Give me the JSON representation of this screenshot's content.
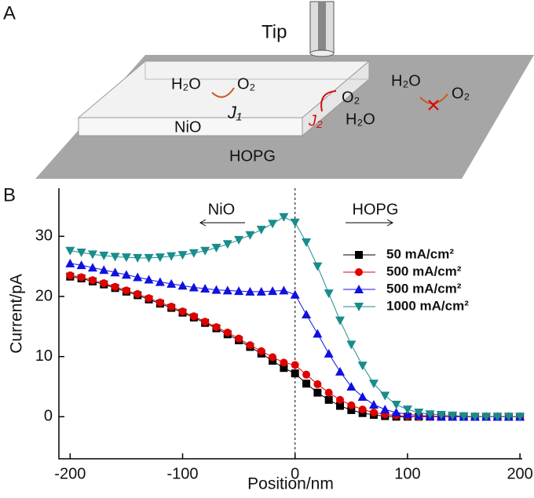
{
  "panel_a": {
    "label": "A",
    "tip": "Tip",
    "left_reactant": "H₂O",
    "left_product": "O₂",
    "j1": "J₁",
    "nio": "NiO",
    "j2": "J₂",
    "edge_product": "O₂",
    "edge_reactant": "H₂O",
    "right_reactant": "H₂O",
    "right_product": "O₂",
    "hopg": "HOPG"
  },
  "chart_data": {
    "type": "line",
    "panel_label": "B",
    "x_label": "Position/nm",
    "y_label": "Current/pA",
    "annotations": [
      "NiO",
      "HOPG"
    ],
    "vline": 0,
    "xlim": [
      -210,
      202
    ],
    "ylim": [
      -7,
      38
    ],
    "xticks": [
      -200,
      -100,
      0,
      100,
      200
    ],
    "yticks": [
      0,
      10,
      20,
      30
    ],
    "x": [
      -200,
      -190,
      -180,
      -170,
      -160,
      -150,
      -140,
      -130,
      -120,
      -110,
      -100,
      -90,
      -80,
      -70,
      -60,
      -50,
      -40,
      -30,
      -20,
      -10,
      0,
      10,
      20,
      30,
      40,
      50,
      60,
      70,
      80,
      90,
      100,
      110,
      120,
      130,
      140,
      150,
      160,
      170,
      180,
      190,
      200
    ],
    "series": [
      {
        "name": "50 mA/cm²",
        "color": "#000000",
        "marker": "square",
        "values": [
          23.3,
          23,
          22.5,
          22,
          21.4,
          20.8,
          20.2,
          19.5,
          18.8,
          18.1,
          17.3,
          16.5,
          15.6,
          14.7,
          13.7,
          12.7,
          11.6,
          10.5,
          9.3,
          8.1,
          7.2,
          5.5,
          4,
          2.8,
          1.8,
          1.1,
          0.6,
          0.3,
          0.1,
          0,
          0,
          0,
          0,
          0,
          0,
          0,
          0,
          0,
          0,
          0,
          0
        ]
      },
      {
        "name": "500 mA/cm²",
        "color": "#e00000",
        "marker": "circle",
        "values": [
          23.5,
          23.2,
          22.7,
          22.2,
          21.6,
          21,
          20.4,
          19.7,
          19,
          18.3,
          17.5,
          16.7,
          15.8,
          14.9,
          14,
          13,
          11.9,
          10.9,
          9.9,
          9,
          8.6,
          7,
          5.4,
          4,
          2.8,
          1.9,
          1.2,
          0.7,
          0.4,
          0.2,
          0.1,
          0,
          0,
          0,
          0,
          0,
          0,
          0,
          0,
          0,
          0
        ]
      },
      {
        "name": "500 mA/cm²",
        "color": "#1010e0",
        "marker": "triangle-up",
        "values": [
          25.5,
          25.2,
          24.8,
          24.4,
          24,
          23.6,
          23.2,
          22.8,
          22.4,
          22.1,
          21.8,
          21.5,
          21.3,
          21.1,
          21,
          20.9,
          20.8,
          20.8,
          20.9,
          21,
          20.3,
          17,
          13.8,
          10.5,
          7.5,
          5,
          3.3,
          2,
          1.2,
          0.7,
          0.4,
          0.2,
          0.1,
          0,
          0,
          0,
          0,
          0,
          0,
          0,
          0
        ]
      },
      {
        "name": "1000 mA/cm²",
        "color": "#1a8c8c",
        "marker": "triangle-down",
        "values": [
          27.6,
          27.3,
          27,
          26.8,
          26.6,
          26.5,
          26.4,
          26.4,
          26.5,
          26.7,
          26.9,
          27.2,
          27.6,
          28.1,
          28.7,
          29.4,
          30.2,
          31.1,
          32.1,
          33.2,
          32.3,
          29,
          25,
          20.5,
          16,
          12,
          8.5,
          5.5,
          3.5,
          2,
          1.2,
          0.7,
          0.4,
          0.3,
          0.2,
          0.1,
          0,
          0,
          0,
          0,
          0
        ]
      }
    ]
  }
}
